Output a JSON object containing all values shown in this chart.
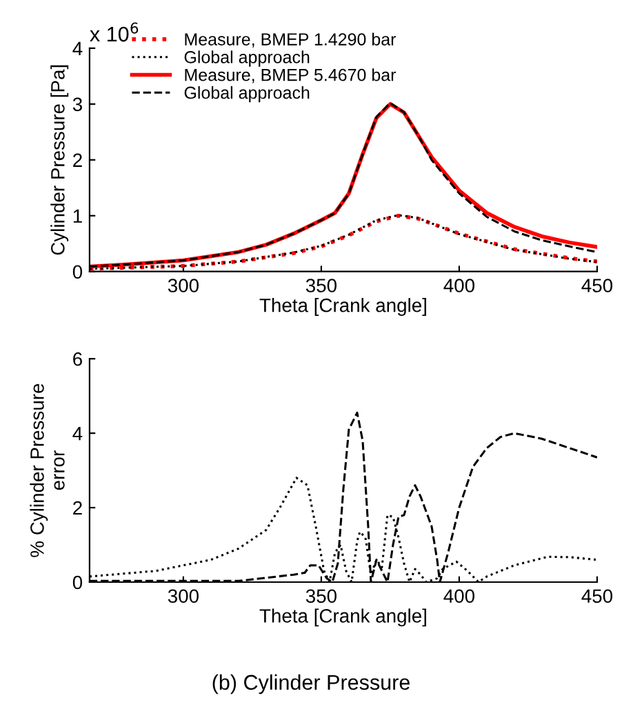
{
  "chart_data": [
    {
      "type": "line",
      "xlabel": "Theta [Crank angle]",
      "ylabel": "Cylinder Pressure [Pa]",
      "annotations": [
        "x 10$^{6}$"
      ],
      "xlim": [
        266,
        450
      ],
      "xticks": [
        300,
        350,
        400,
        450
      ],
      "ylim": [
        0,
        4
      ],
      "yticks": [
        0,
        1,
        2,
        3,
        4
      ],
      "legend": "top left",
      "grid": false,
      "series": [
        {
          "name": "Measure, BMEP 1.4290 bar",
          "color": "#ff0000",
          "line_style": "dotted",
          "x": [
            266,
            300,
            320,
            340,
            350,
            360,
            370,
            378,
            385,
            400,
            420,
            440,
            450
          ],
          "values": [
            0.05,
            0.1,
            0.18,
            0.33,
            0.45,
            0.65,
            0.9,
            1.0,
            0.95,
            0.68,
            0.4,
            0.24,
            0.18
          ]
        },
        {
          "name": "Global approach",
          "color": "#000000",
          "line_style": "dotted",
          "x": [
            266,
            300,
            320,
            340,
            350,
            360,
            370,
            378,
            385,
            400,
            420,
            440,
            450
          ],
          "values": [
            0.05,
            0.1,
            0.18,
            0.34,
            0.46,
            0.66,
            0.92,
            1.01,
            0.96,
            0.67,
            0.39,
            0.23,
            0.17
          ]
        },
        {
          "name": "Measure, BMEP 5.4670 bar",
          "color": "#ff0000",
          "line_style": "solid",
          "x": [
            266,
            280,
            300,
            320,
            330,
            340,
            350,
            355,
            360,
            365,
            370,
            375,
            380,
            385,
            390,
            400,
            410,
            420,
            430,
            440,
            450
          ],
          "values": [
            0.09,
            0.13,
            0.2,
            0.35,
            0.48,
            0.68,
            0.92,
            1.05,
            1.4,
            2.1,
            2.75,
            3.0,
            2.85,
            2.45,
            2.05,
            1.45,
            1.05,
            0.8,
            0.63,
            0.52,
            0.44
          ]
        },
        {
          "name": "Global approach",
          "color": "#000000",
          "line_style": "dashed",
          "x": [
            266,
            280,
            300,
            320,
            330,
            340,
            350,
            355,
            360,
            365,
            370,
            375,
            380,
            385,
            390,
            400,
            410,
            420,
            430,
            440,
            450
          ],
          "values": [
            0.09,
            0.13,
            0.2,
            0.35,
            0.48,
            0.68,
            0.92,
            1.05,
            1.4,
            2.1,
            2.77,
            3.02,
            2.85,
            2.45,
            2.0,
            1.4,
            0.98,
            0.72,
            0.56,
            0.45,
            0.35
          ]
        }
      ]
    },
    {
      "type": "line",
      "xlabel": "Theta [Crank angle]",
      "ylabel": "% Cylinder Pressure\nerror",
      "annotations": [
        "(b) Cylinder Pressure"
      ],
      "xlim": [
        266,
        450
      ],
      "xticks": [
        300,
        350,
        400,
        450
      ],
      "ylim": [
        0,
        6
      ],
      "yticks": [
        0,
        2,
        4,
        6
      ],
      "grid": false,
      "series": [
        {
          "color": "#000000",
          "line_style": "dotted",
          "x": [
            266,
            290,
            310,
            320,
            330,
            335,
            341,
            345,
            348,
            351,
            353,
            355,
            357,
            359,
            361,
            363,
            364,
            366,
            368,
            370,
            372,
            374,
            376,
            378,
            380,
            382,
            384,
            386,
            388,
            392,
            394,
            399,
            403,
            407,
            410,
            420,
            432,
            440,
            450
          ],
          "values": [
            0.15,
            0.3,
            0.6,
            0.9,
            1.4,
            2.0,
            2.8,
            2.6,
            1.5,
            0.3,
            0,
            0.8,
            1.0,
            0.3,
            0,
            1.1,
            1.35,
            1.2,
            0.2,
            0.6,
            0.4,
            1.8,
            1.75,
            1.2,
            0.5,
            0,
            0.35,
            0.2,
            0,
            0.1,
            0.35,
            0.55,
            0.3,
            0,
            0.15,
            0.45,
            0.68,
            0.67,
            0.6
          ]
        },
        {
          "color": "#000000",
          "line_style": "dashed",
          "x": [
            266,
            320,
            340,
            344,
            346,
            349,
            352,
            354,
            356,
            358,
            360,
            363,
            365,
            367,
            368,
            370,
            372,
            374,
            376,
            378,
            380,
            382,
            384,
            386,
            388,
            390,
            392,
            393,
            396,
            400,
            405,
            410,
            415,
            420,
            430,
            440,
            450
          ],
          "values": [
            0.03,
            0.03,
            0.2,
            0.25,
            0.45,
            0.45,
            0.1,
            0,
            0.5,
            2.5,
            4.1,
            4.55,
            3.8,
            1.5,
            0,
            0.6,
            0.3,
            0,
            1.0,
            1.75,
            1.8,
            2.3,
            2.6,
            2.3,
            1.9,
            1.5,
            0.6,
            0,
            0.8,
            2.0,
            3.1,
            3.6,
            3.9,
            4.0,
            3.85,
            3.6,
            3.35
          ]
        }
      ]
    }
  ]
}
